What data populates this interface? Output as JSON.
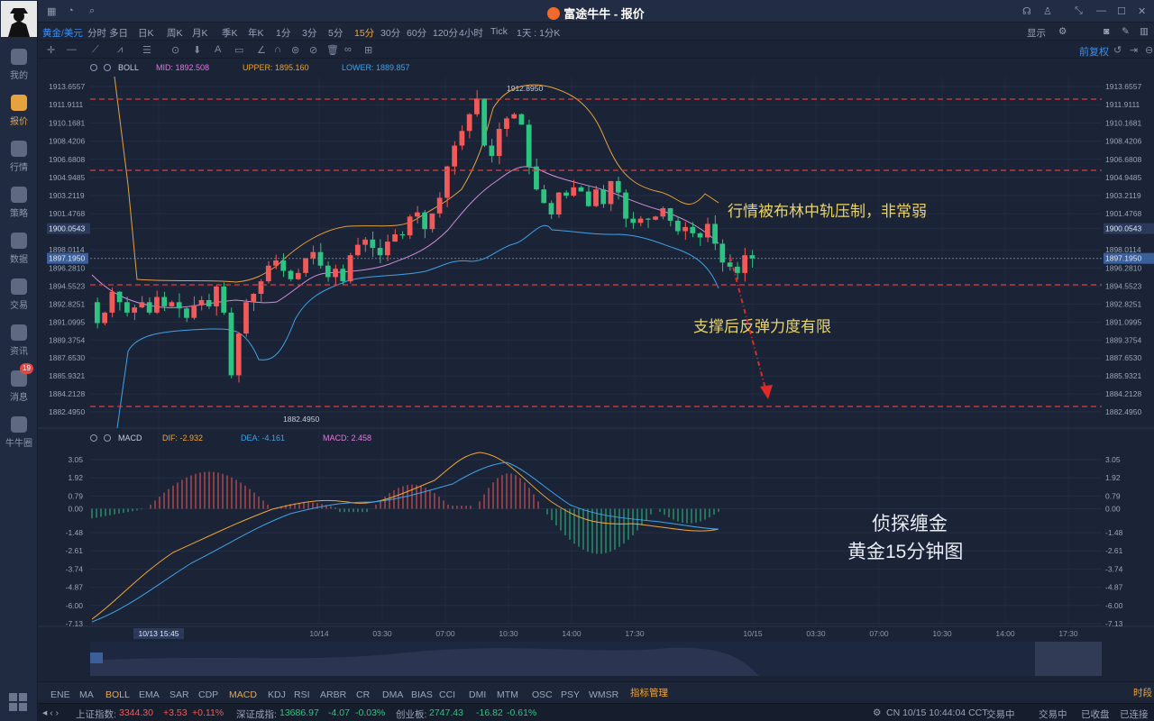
{
  "sidebar": {
    "items": [
      {
        "label": "我的",
        "icon": "user-icon"
      },
      {
        "label": "报价",
        "icon": "quote-icon",
        "active": true
      },
      {
        "label": "行情",
        "icon": "market-icon"
      },
      {
        "label": "策略",
        "icon": "strategy-icon"
      },
      {
        "label": "数据",
        "icon": "data-icon"
      },
      {
        "label": "交易",
        "icon": "trade-icon"
      },
      {
        "label": "资讯",
        "icon": "news-icon"
      },
      {
        "label": "消息",
        "icon": "message-icon",
        "badge": "19"
      },
      {
        "label": "牛牛圈",
        "icon": "community-icon"
      }
    ]
  },
  "titlebar": {
    "title": "富途牛牛 - 报价"
  },
  "toolbar": {
    "symbol": "黄金/美元",
    "timeframes": [
      "分时",
      "多日",
      "日K",
      "周K",
      "月K",
      "季K",
      "年K",
      "1分",
      "3分",
      "5分",
      "15分",
      "30分",
      "60分",
      "120分",
      "4小时",
      "Tick"
    ],
    "active": "15分",
    "period_select": "1天 : 1分K",
    "display": "显示",
    "prefix_right": "前复权"
  },
  "boll": {
    "name": "BOLL",
    "mid": "MID: 1892.508",
    "upper": "UPPER: 1895.160",
    "lower": "LOWER: 1889.857"
  },
  "macd_legend": {
    "name": "MACD",
    "dif": "DIF: -2.932",
    "dea": "DEA: -4.161",
    "macd": "MACD: 2.458"
  },
  "price_axis": [
    "1913.6557",
    "1911.9111",
    "1910.1681",
    "1908.4206",
    "1906.6808",
    "1904.9485",
    "1903.2119",
    "1901.4768",
    "1900.0543",
    "1898.0114",
    "1896.2810",
    "1894.5523",
    "1892.8251",
    "1891.0995",
    "1889.3754",
    "1887.6530",
    "1885.9321",
    "1884.2128",
    "1882.4950"
  ],
  "current_price": "1897.1950",
  "macd_axis": [
    "3.05",
    "1.92",
    "0.79",
    "0.00",
    "-1.48",
    "-2.61",
    "-3.74",
    "-4.87",
    "-6.00",
    "-7.13"
  ],
  "time_axis": [
    "10/13 15:45",
    "10/14",
    "03:30",
    "07:00",
    "10:30",
    "14:00",
    "17:30",
    "10/15",
    "03:30",
    "07:00",
    "10:30",
    "14:00",
    "17:30"
  ],
  "high_label": "1912.8950",
  "low_label": "1882.4950",
  "annotations": {
    "text1": "行情被布林中轨压制，非常弱",
    "text2": "支撑后反弹力度有限",
    "watermark1": "侦探缠金",
    "watermark2": "黄金15分钟图"
  },
  "indicators": {
    "items": [
      "ENE",
      "MA",
      "BOLL",
      "EMA",
      "SAR",
      "CDP",
      "MACD",
      "KDJ",
      "RSI",
      "ARBR",
      "CR",
      "DMA",
      "BIAS",
      "CCI",
      "DMI",
      "MTM",
      "OSC",
      "PSY",
      "WMSR"
    ],
    "active": [
      "BOLL",
      "MACD"
    ],
    "manage": "指标管理",
    "right": "时段"
  },
  "status": {
    "sh_label": "上证指数:",
    "sh_value": "3344.30",
    "sh_change": "+3.53",
    "sh_pct": "+0.11%",
    "sz_label": "深证成指:",
    "sz_value": "13686.97",
    "sz_change": "-4.07",
    "sz_pct": "-0.03%",
    "cy_label": "创业板:",
    "cy_value": "2747.43",
    "cy_change": "-16.82",
    "cy_pct": "-0.61%",
    "time": "CN 10/15 10:44:04 CCT",
    "m1": "交易中",
    "m2": "交易中",
    "m3": "已收盘",
    "m4": "已连接"
  },
  "colors": {
    "up": "#f25a5a",
    "down": "#2fc383",
    "accent": "#f0a63a",
    "blue": "#3b8ef0"
  }
}
